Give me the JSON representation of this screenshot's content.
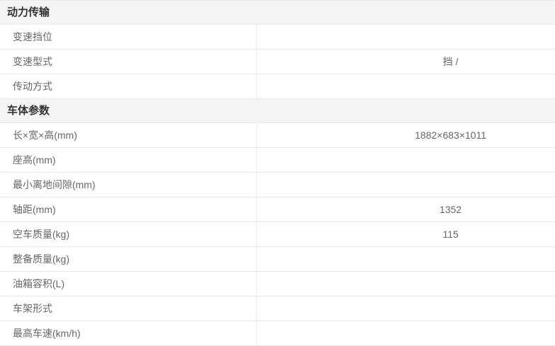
{
  "table": {
    "colors": {
      "header_bg": "#f4f4f4",
      "header_text": "#333333",
      "text": "#666666",
      "border": "#e8e8e8",
      "divider": "#ececec"
    },
    "sections": [
      {
        "title": "动力传输",
        "rows": [
          {
            "label": "变速挡位",
            "value": ""
          },
          {
            "label": "变速型式",
            "value": "挡 /"
          },
          {
            "label": "传动方式",
            "value": ""
          }
        ]
      },
      {
        "title": "车体参数",
        "rows": [
          {
            "label": "长×宽×高(mm)",
            "value": "1882×683×1011"
          },
          {
            "label": "座高(mm)",
            "value": ""
          },
          {
            "label": "最小离地间隙(mm)",
            "value": ""
          },
          {
            "label": "轴距(mm)",
            "value": "1352"
          },
          {
            "label": "空车质量(kg)",
            "value": "115"
          },
          {
            "label": "整备质量(kg)",
            "value": ""
          },
          {
            "label": "油箱容积(L)",
            "value": ""
          },
          {
            "label": "车架形式",
            "value": ""
          },
          {
            "label": "最高车速(km/h)",
            "value": ""
          }
        ]
      }
    ]
  }
}
